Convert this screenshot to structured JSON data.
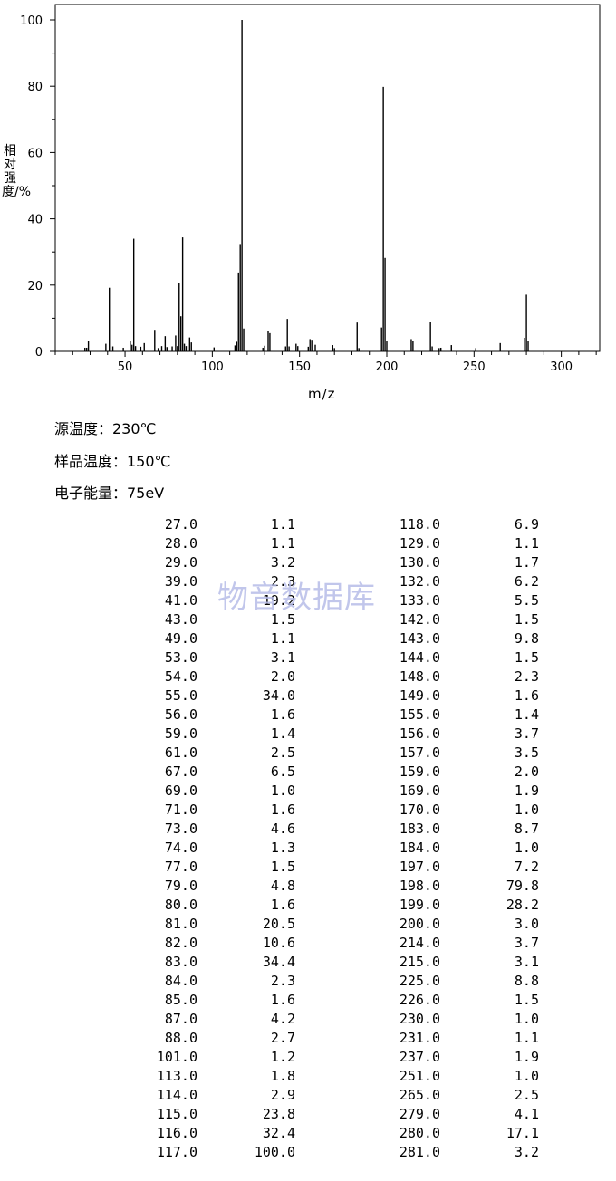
{
  "chart_data": {
    "type": "bar",
    "xlabel": "m/z",
    "ylabel": "相对强度/%",
    "xlim": [
      10,
      322
    ],
    "ylim": [
      0,
      100
    ],
    "x_ticks": [
      50,
      100,
      150,
      200,
      250,
      300
    ],
    "y_ticks": [
      0,
      20,
      40,
      60,
      80,
      100
    ],
    "grid": false,
    "peaks": [
      {
        "mz": 27.0,
        "intensity": 1.1
      },
      {
        "mz": 28.0,
        "intensity": 1.1
      },
      {
        "mz": 29.0,
        "intensity": 3.2
      },
      {
        "mz": 39.0,
        "intensity": 2.3
      },
      {
        "mz": 41.0,
        "intensity": 19.2
      },
      {
        "mz": 43.0,
        "intensity": 1.5
      },
      {
        "mz": 49.0,
        "intensity": 1.1
      },
      {
        "mz": 53.0,
        "intensity": 3.1
      },
      {
        "mz": 54.0,
        "intensity": 2.0
      },
      {
        "mz": 55.0,
        "intensity": 34.0
      },
      {
        "mz": 56.0,
        "intensity": 1.6
      },
      {
        "mz": 59.0,
        "intensity": 1.4
      },
      {
        "mz": 61.0,
        "intensity": 2.5
      },
      {
        "mz": 67.0,
        "intensity": 6.5
      },
      {
        "mz": 69.0,
        "intensity": 1.0
      },
      {
        "mz": 71.0,
        "intensity": 1.6
      },
      {
        "mz": 73.0,
        "intensity": 4.6
      },
      {
        "mz": 74.0,
        "intensity": 1.3
      },
      {
        "mz": 77.0,
        "intensity": 1.5
      },
      {
        "mz": 79.0,
        "intensity": 4.8
      },
      {
        "mz": 80.0,
        "intensity": 1.6
      },
      {
        "mz": 81.0,
        "intensity": 20.5
      },
      {
        "mz": 82.0,
        "intensity": 10.6
      },
      {
        "mz": 83.0,
        "intensity": 34.4
      },
      {
        "mz": 84.0,
        "intensity": 2.3
      },
      {
        "mz": 85.0,
        "intensity": 1.6
      },
      {
        "mz": 87.0,
        "intensity": 4.2
      },
      {
        "mz": 88.0,
        "intensity": 2.7
      },
      {
        "mz": 101.0,
        "intensity": 1.2
      },
      {
        "mz": 113.0,
        "intensity": 1.8
      },
      {
        "mz": 114.0,
        "intensity": 2.9
      },
      {
        "mz": 115.0,
        "intensity": 23.8
      },
      {
        "mz": 116.0,
        "intensity": 32.4
      },
      {
        "mz": 117.0,
        "intensity": 100.0
      },
      {
        "mz": 118.0,
        "intensity": 6.9
      },
      {
        "mz": 129.0,
        "intensity": 1.1
      },
      {
        "mz": 130.0,
        "intensity": 1.7
      },
      {
        "mz": 132.0,
        "intensity": 6.2
      },
      {
        "mz": 133.0,
        "intensity": 5.5
      },
      {
        "mz": 142.0,
        "intensity": 1.5
      },
      {
        "mz": 143.0,
        "intensity": 9.8
      },
      {
        "mz": 144.0,
        "intensity": 1.5
      },
      {
        "mz": 148.0,
        "intensity": 2.3
      },
      {
        "mz": 149.0,
        "intensity": 1.6
      },
      {
        "mz": 155.0,
        "intensity": 1.4
      },
      {
        "mz": 156.0,
        "intensity": 3.7
      },
      {
        "mz": 157.0,
        "intensity": 3.5
      },
      {
        "mz": 159.0,
        "intensity": 2.0
      },
      {
        "mz": 169.0,
        "intensity": 1.9
      },
      {
        "mz": 170.0,
        "intensity": 1.0
      },
      {
        "mz": 183.0,
        "intensity": 8.7
      },
      {
        "mz": 184.0,
        "intensity": 1.0
      },
      {
        "mz": 197.0,
        "intensity": 7.2
      },
      {
        "mz": 198.0,
        "intensity": 79.8
      },
      {
        "mz": 199.0,
        "intensity": 28.2
      },
      {
        "mz": 200.0,
        "intensity": 3.0
      },
      {
        "mz": 214.0,
        "intensity": 3.7
      },
      {
        "mz": 215.0,
        "intensity": 3.1
      },
      {
        "mz": 225.0,
        "intensity": 8.8
      },
      {
        "mz": 226.0,
        "intensity": 1.5
      },
      {
        "mz": 230.0,
        "intensity": 1.0
      },
      {
        "mz": 231.0,
        "intensity": 1.1
      },
      {
        "mz": 237.0,
        "intensity": 1.9
      },
      {
        "mz": 251.0,
        "intensity": 1.0
      },
      {
        "mz": 265.0,
        "intensity": 2.5
      },
      {
        "mz": 279.0,
        "intensity": 4.1
      },
      {
        "mz": 280.0,
        "intensity": 17.1
      },
      {
        "mz": 281.0,
        "intensity": 3.2
      }
    ]
  },
  "conditions": {
    "source_temp": "源温度：230℃",
    "sample_temp": "样品温度：150℃",
    "electron_energy": "电子能量：75eV"
  },
  "watermark": "物音数据库",
  "table": {
    "left": [
      [
        "27.0",
        "1.1"
      ],
      [
        "28.0",
        "1.1"
      ],
      [
        "29.0",
        "3.2"
      ],
      [
        "39.0",
        "2.3"
      ],
      [
        "41.0",
        "19.2"
      ],
      [
        "43.0",
        "1.5"
      ],
      [
        "49.0",
        "1.1"
      ],
      [
        "53.0",
        "3.1"
      ],
      [
        "54.0",
        "2.0"
      ],
      [
        "55.0",
        "34.0"
      ],
      [
        "56.0",
        "1.6"
      ],
      [
        "59.0",
        "1.4"
      ],
      [
        "61.0",
        "2.5"
      ],
      [
        "67.0",
        "6.5"
      ],
      [
        "69.0",
        "1.0"
      ],
      [
        "71.0",
        "1.6"
      ],
      [
        "73.0",
        "4.6"
      ],
      [
        "74.0",
        "1.3"
      ],
      [
        "77.0",
        "1.5"
      ],
      [
        "79.0",
        "4.8"
      ],
      [
        "80.0",
        "1.6"
      ],
      [
        "81.0",
        "20.5"
      ],
      [
        "82.0",
        "10.6"
      ],
      [
        "83.0",
        "34.4"
      ],
      [
        "84.0",
        "2.3"
      ],
      [
        "85.0",
        "1.6"
      ],
      [
        "87.0",
        "4.2"
      ],
      [
        "88.0",
        "2.7"
      ],
      [
        "101.0",
        "1.2"
      ],
      [
        "113.0",
        "1.8"
      ],
      [
        "114.0",
        "2.9"
      ],
      [
        "115.0",
        "23.8"
      ],
      [
        "116.0",
        "32.4"
      ],
      [
        "117.0",
        "100.0"
      ]
    ],
    "right": [
      [
        "118.0",
        "6.9"
      ],
      [
        "129.0",
        "1.1"
      ],
      [
        "130.0",
        "1.7"
      ],
      [
        "132.0",
        "6.2"
      ],
      [
        "133.0",
        "5.5"
      ],
      [
        "142.0",
        "1.5"
      ],
      [
        "143.0",
        "9.8"
      ],
      [
        "144.0",
        "1.5"
      ],
      [
        "148.0",
        "2.3"
      ],
      [
        "149.0",
        "1.6"
      ],
      [
        "155.0",
        "1.4"
      ],
      [
        "156.0",
        "3.7"
      ],
      [
        "157.0",
        "3.5"
      ],
      [
        "159.0",
        "2.0"
      ],
      [
        "169.0",
        "1.9"
      ],
      [
        "170.0",
        "1.0"
      ],
      [
        "183.0",
        "8.7"
      ],
      [
        "184.0",
        "1.0"
      ],
      [
        "197.0",
        "7.2"
      ],
      [
        "198.0",
        "79.8"
      ],
      [
        "199.0",
        "28.2"
      ],
      [
        "200.0",
        "3.0"
      ],
      [
        "214.0",
        "3.7"
      ],
      [
        "215.0",
        "3.1"
      ],
      [
        "225.0",
        "8.8"
      ],
      [
        "226.0",
        "1.5"
      ],
      [
        "230.0",
        "1.0"
      ],
      [
        "231.0",
        "1.1"
      ],
      [
        "237.0",
        "1.9"
      ],
      [
        "251.0",
        "1.0"
      ],
      [
        "265.0",
        "2.5"
      ],
      [
        "279.0",
        "4.1"
      ],
      [
        "280.0",
        "17.1"
      ],
      [
        "281.0",
        "3.2"
      ]
    ]
  }
}
